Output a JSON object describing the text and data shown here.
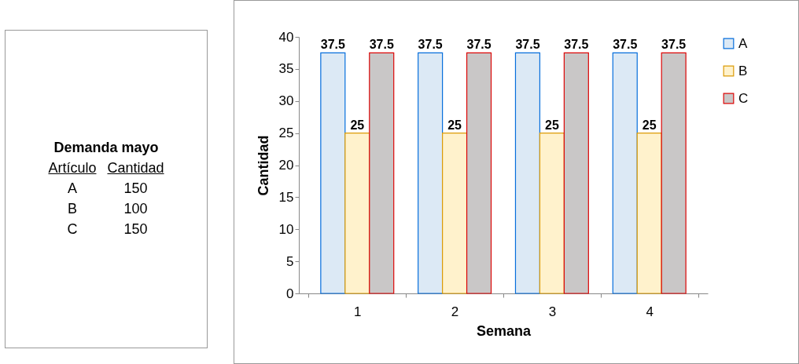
{
  "chart_data": [
    {
      "type": "other",
      "title": "Demanda mayo",
      "annotations": [
        "Artículo",
        "Cantidad",
        "A",
        "150",
        "B",
        "100",
        "C",
        "150"
      ]
    },
    {
      "type": "bar",
      "xlabel": "Semana",
      "ylabel": "Cantidad",
      "categories": [
        "1",
        "2",
        "3",
        "4"
      ],
      "series": [
        {
          "name": "A",
          "color": "#dce9f5",
          "values": [
            37.5,
            37.5,
            37.5,
            37.5
          ]
        },
        {
          "name": "B",
          "color": "#fff2cc",
          "values": [
            25,
            25,
            25,
            25
          ]
        },
        {
          "name": "C",
          "color": "#c9c7c7",
          "values": [
            37.5,
            37.5,
            37.5,
            37.5
          ]
        }
      ],
      "ylim": [
        0,
        40
      ],
      "yticks": [
        0,
        5,
        10,
        15,
        20,
        25,
        30,
        35,
        40
      ],
      "data_labels": true,
      "grid": false,
      "legend": "right"
    }
  ]
}
